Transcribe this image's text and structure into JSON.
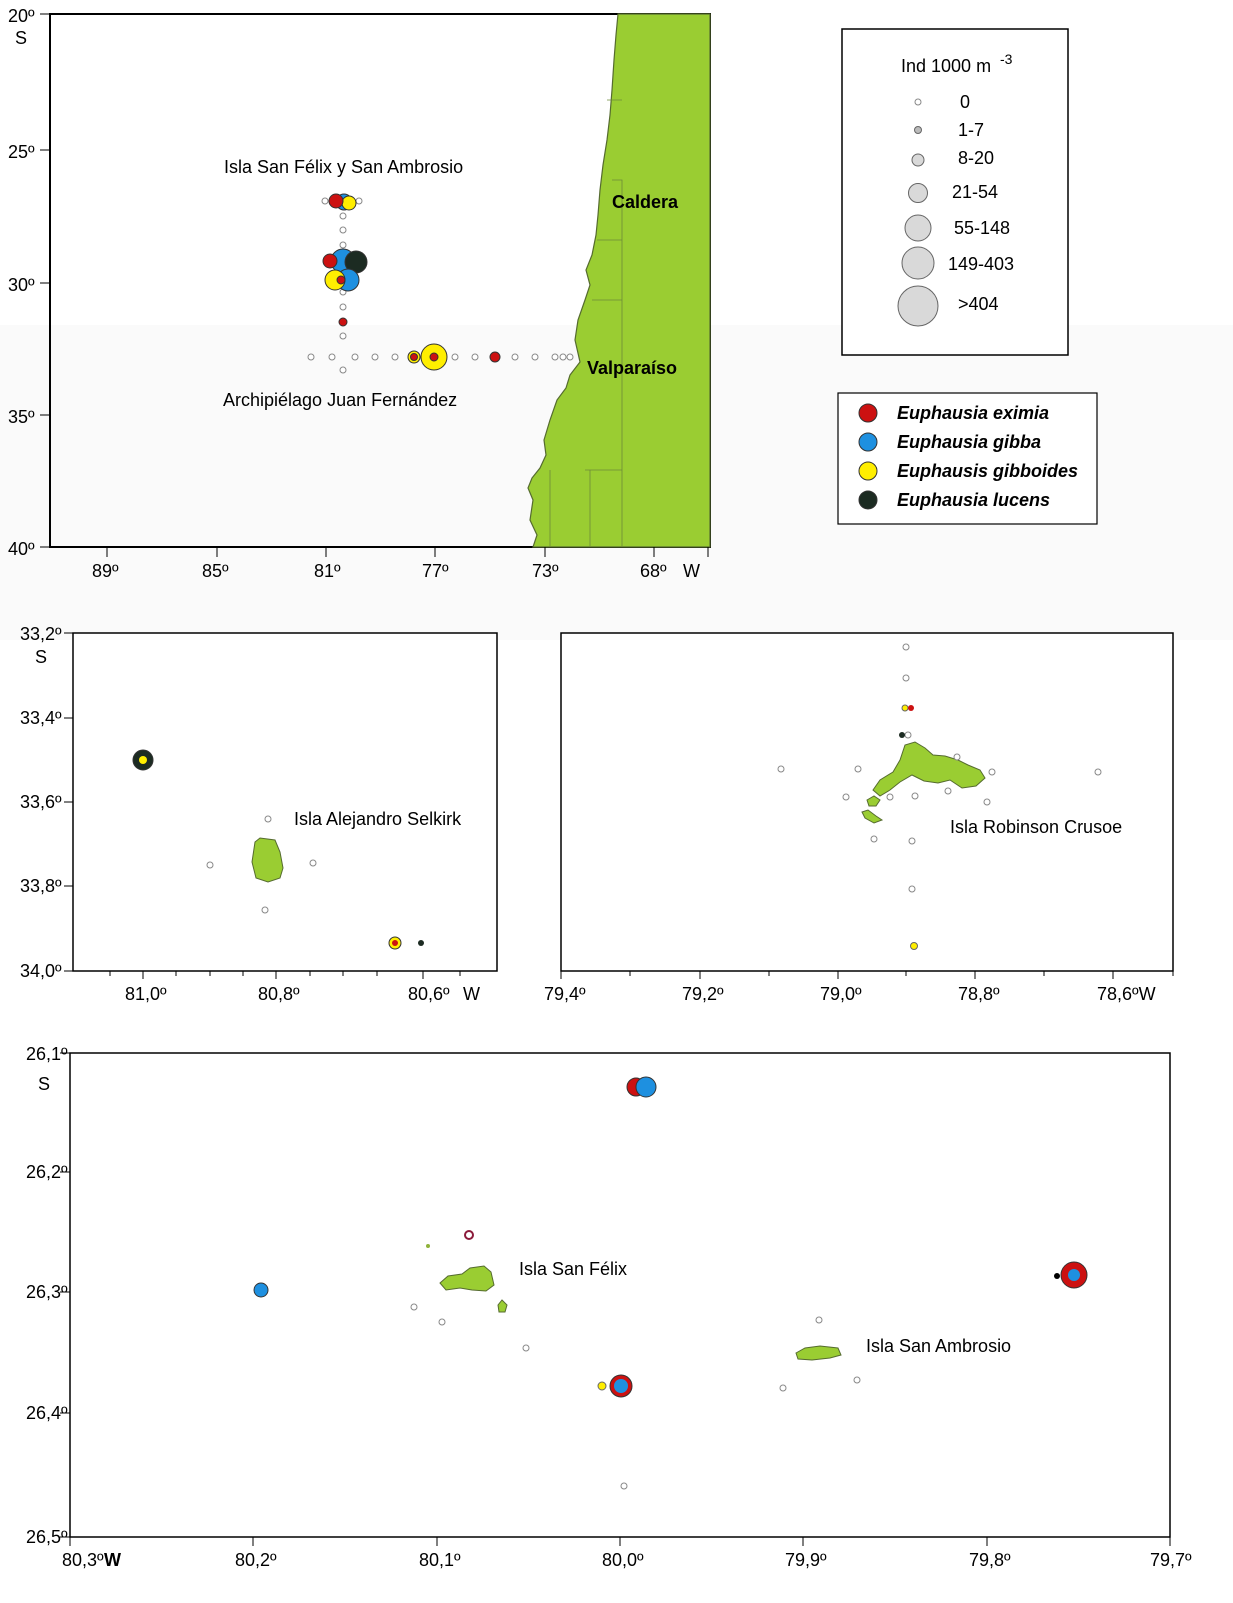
{
  "colors": {
    "land": "#9ACD32",
    "land_stroke": "#556b2f",
    "eximia": "#CC1111",
    "gibba": "#1E90E0",
    "gibboides": "#FFEE00",
    "lucens": "#1C2B22",
    "zero": "#ffffff",
    "size_class": "#d9d9d9"
  },
  "main_map": {
    "lat_labels": [
      "20º",
      "25º",
      "30º",
      "35º",
      "40º"
    ],
    "lat_hemisphere": "S",
    "lon_labels": [
      "89º",
      "85º",
      "81º",
      "77º",
      "73º",
      "68º"
    ],
    "lon_hemisphere": "W",
    "place_labels": {
      "san_felix": "Isla San Félix y San Ambrosio",
      "caldera": "Caldera",
      "valparaiso": "Valparaíso",
      "juan_fernandez": "Archipiélago Juan Fernández"
    }
  },
  "size_legend": {
    "title": "Ind  1000 m",
    "title_sup": "-3",
    "classes": [
      "0",
      "1-7",
      "8-20",
      "21-54",
      "55-148",
      "149-403",
      ">404"
    ]
  },
  "species_legend": [
    {
      "name": "Euphausia eximia",
      "color_key": "eximia"
    },
    {
      "name": "Euphausia gibba",
      "color_key": "gibba"
    },
    {
      "name": "Euphausis gibboides",
      "color_key": "gibboides"
    },
    {
      "name": "Euphausia lucens",
      "color_key": "lucens"
    }
  ],
  "selkirk_map": {
    "lat_labels": [
      "33,2º",
      "33,4º",
      "33,6º",
      "33,8º",
      "34,0º"
    ],
    "lat_hemisphere": "S",
    "lon_labels": [
      "81,0º",
      "80,8º",
      "80,6º"
    ],
    "lon_hemisphere": "W",
    "island_label": "Isla Alejandro Selkirk"
  },
  "robinson_map": {
    "lon_labels": [
      "79,4º",
      "79,2º",
      "79,0º",
      "78,8º",
      "78,6ºW"
    ],
    "island_label": "Isla Robinson Crusoe"
  },
  "sanfelix_map": {
    "lat_labels": [
      "26,1º",
      "26,2º",
      "26,3º",
      "26,4º",
      "26,5º"
    ],
    "lat_hemisphere": "S",
    "lon_labels": [
      "80,3º",
      "80,2º",
      "80,1º",
      "80,0º",
      "79,9º",
      "79,8º",
      "79,7º"
    ],
    "lon_hemisphere": "W",
    "island_labels": {
      "san_felix": "Isla San Félix",
      "san_ambrosio": "Isla San Ambrosio"
    }
  }
}
